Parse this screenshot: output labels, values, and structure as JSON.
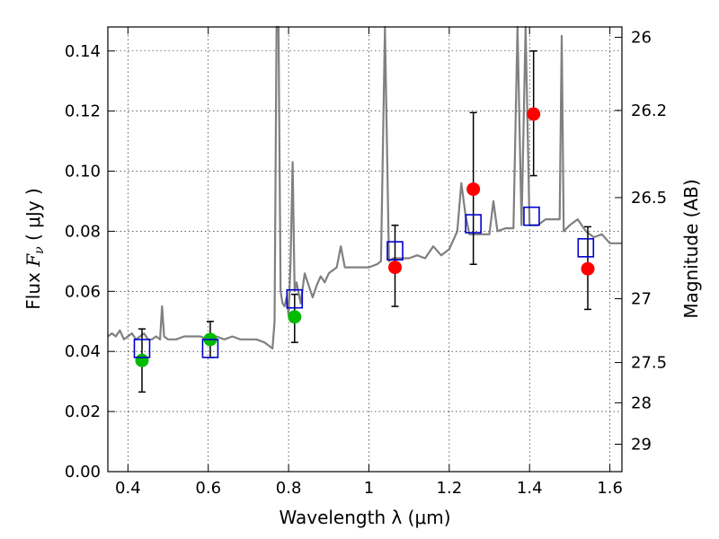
{
  "chart_data": {
    "type": "scatter",
    "title": "",
    "xlabel": "Wavelength  λ (μm)",
    "ylabel_prefix": "Flux  ",
    "ylabel_symbol": "F",
    "ylabel_subscript": "ν",
    "ylabel_unit": "  ( μJy )",
    "y2label": "Magnitude (AB)",
    "xlim": [
      0.35,
      1.63
    ],
    "ylim": [
      0.0,
      0.148
    ],
    "grid": true,
    "x_ticks": [
      {
        "value": 0.4,
        "label": "0.4"
      },
      {
        "value": 0.6,
        "label": "0.6"
      },
      {
        "value": 0.8,
        "label": "0.8"
      },
      {
        "value": 1.0,
        "label": "1"
      },
      {
        "value": 1.2,
        "label": "1.2"
      },
      {
        "value": 1.4,
        "label": "1.4"
      },
      {
        "value": 1.6,
        "label": "1.6"
      }
    ],
    "y_ticks": [
      {
        "value": 0.0,
        "label": "0.00"
      },
      {
        "value": 0.02,
        "label": "0.02"
      },
      {
        "value": 0.04,
        "label": "0.04"
      },
      {
        "value": 0.06,
        "label": "0.06"
      },
      {
        "value": 0.08,
        "label": "0.08"
      },
      {
        "value": 0.1,
        "label": "0.10"
      },
      {
        "value": 0.12,
        "label": "0.12"
      },
      {
        "value": 0.14,
        "label": "0.14"
      }
    ],
    "y2_ticks": [
      {
        "value": 26.0,
        "label": "26"
      },
      {
        "value": 26.2,
        "label": "26.2"
      },
      {
        "value": 26.5,
        "label": "26.5"
      },
      {
        "value": 27.0,
        "label": "27"
      },
      {
        "value": 27.5,
        "label": "27.5"
      },
      {
        "value": 28.0,
        "label": "28"
      },
      {
        "value": 29.0,
        "label": "29"
      }
    ],
    "colors": {
      "spectrum": "#808080",
      "green": "#00bb00",
      "red": "#ff0000",
      "model": "#0000cc",
      "errorbar": "#000000"
    },
    "spectrum": {
      "x": [
        0.35,
        0.36,
        0.37,
        0.38,
        0.39,
        0.4,
        0.41,
        0.42,
        0.43,
        0.44,
        0.45,
        0.46,
        0.47,
        0.48,
        0.485,
        0.49,
        0.5,
        0.52,
        0.54,
        0.56,
        0.58,
        0.6,
        0.62,
        0.64,
        0.66,
        0.68,
        0.7,
        0.72,
        0.74,
        0.75,
        0.76,
        0.765,
        0.77,
        0.775,
        0.78,
        0.785,
        0.79,
        0.795,
        0.8,
        0.805,
        0.81,
        0.815,
        0.82,
        0.83,
        0.84,
        0.85,
        0.86,
        0.87,
        0.88,
        0.89,
        0.9,
        0.92,
        0.93,
        0.94,
        0.96,
        0.98,
        1.0,
        1.02,
        1.03,
        1.04,
        1.05,
        1.06,
        1.08,
        1.1,
        1.12,
        1.14,
        1.16,
        1.18,
        1.2,
        1.22,
        1.23,
        1.24,
        1.25,
        1.26,
        1.28,
        1.3,
        1.31,
        1.32,
        1.34,
        1.36,
        1.37,
        1.38,
        1.39,
        1.4,
        1.42,
        1.44,
        1.46,
        1.475,
        1.48,
        1.485,
        1.5,
        1.52,
        1.54,
        1.56,
        1.58,
        1.6,
        1.63
      ],
      "y": [
        0.045,
        0.046,
        0.045,
        0.047,
        0.044,
        0.045,
        0.046,
        0.044,
        0.045,
        0.046,
        0.044,
        0.044,
        0.045,
        0.044,
        0.055,
        0.045,
        0.044,
        0.044,
        0.045,
        0.045,
        0.045,
        0.044,
        0.045,
        0.044,
        0.045,
        0.044,
        0.044,
        0.044,
        0.043,
        0.042,
        0.041,
        0.05,
        0.148,
        0.148,
        0.06,
        0.056,
        0.055,
        0.058,
        0.052,
        0.07,
        0.103,
        0.06,
        0.063,
        0.056,
        0.066,
        0.062,
        0.058,
        0.062,
        0.065,
        0.063,
        0.066,
        0.068,
        0.075,
        0.068,
        0.068,
        0.068,
        0.068,
        0.069,
        0.07,
        0.148,
        0.07,
        0.071,
        0.071,
        0.071,
        0.072,
        0.071,
        0.075,
        0.072,
        0.074,
        0.08,
        0.096,
        0.086,
        0.079,
        0.079,
        0.079,
        0.079,
        0.09,
        0.08,
        0.081,
        0.081,
        0.148,
        0.082,
        0.148,
        0.082,
        0.082,
        0.084,
        0.084,
        0.084,
        0.145,
        0.08,
        0.082,
        0.084,
        0.08,
        0.078,
        0.079,
        0.076,
        0.076
      ]
    },
    "series": [
      {
        "x": [
          0.435,
          0.605,
          0.815
        ],
        "y": [
          0.037,
          0.044,
          0.0515
        ],
        "marker": "circle",
        "color": "green"
      },
      {
        "x": [
          1.065,
          1.26,
          1.41,
          1.545
        ],
        "y": [
          0.068,
          0.094,
          0.119,
          0.0675
        ],
        "marker": "circle",
        "color": "red"
      },
      {
        "x": [
          0.435,
          0.605,
          0.815,
          1.065,
          1.26,
          1.405,
          1.54
        ],
        "y": [
          0.041,
          0.041,
          0.0575,
          0.0735,
          0.0825,
          0.085,
          0.0745
        ],
        "marker": "open-square",
        "color": "model"
      }
    ],
    "errorbars": [
      {
        "x": 0.435,
        "low": 0.0265,
        "high": 0.0475
      },
      {
        "x": 0.605,
        "low": 0.038,
        "high": 0.05
      },
      {
        "x": 0.815,
        "low": 0.043,
        "high": 0.059
      },
      {
        "x": 1.065,
        "low": 0.055,
        "high": 0.082
      },
      {
        "x": 1.26,
        "low": 0.069,
        "high": 0.1195
      },
      {
        "x": 1.41,
        "low": 0.0985,
        "high": 0.14
      },
      {
        "x": 1.545,
        "low": 0.054,
        "high": 0.0815
      }
    ]
  }
}
